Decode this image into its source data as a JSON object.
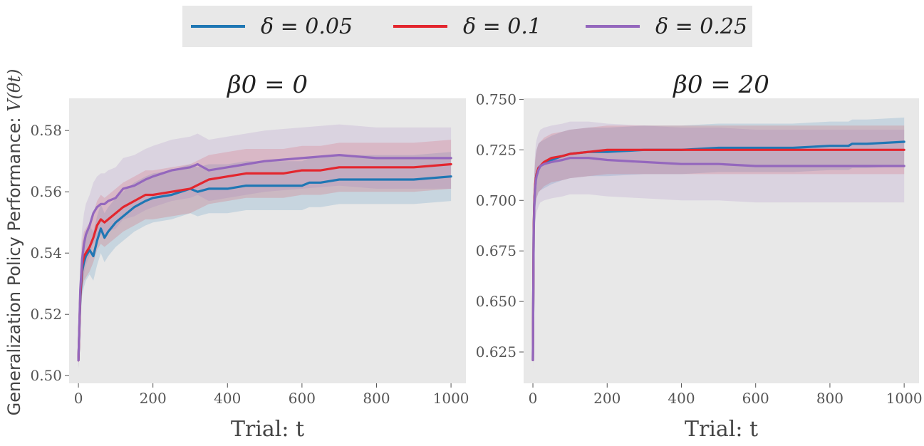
{
  "figure": {
    "ylabel_text": "Generalization Policy Performance:",
    "ylabel_math": "V(θt)",
    "legend": [
      {
        "label": "δ = 0.05",
        "color": "#1f77b4"
      },
      {
        "label": "δ = 0.1",
        "color": "#e3262e"
      },
      {
        "label": "δ = 0.25",
        "color": "#9467bd"
      }
    ]
  },
  "chart_data": [
    {
      "type": "line",
      "title": "β0 = 0",
      "xlabel": "Trial: t",
      "ylabel": "Generalization Policy Performance: V(θt)",
      "xlim": [
        -25,
        1040
      ],
      "ylim": [
        0.4975,
        0.5905
      ],
      "xticks": [
        0,
        200,
        400,
        600,
        800,
        1000
      ],
      "xtick_labels": [
        "0",
        "200",
        "400",
        "600",
        "800",
        "1000"
      ],
      "yticks": [
        0.5,
        0.52,
        0.54,
        0.56,
        0.58
      ],
      "ytick_labels": [
        "0.50",
        "0.52",
        "0.54",
        "0.56",
        "0.58"
      ],
      "grid": false,
      "series": [
        {
          "name": "δ = 0.05",
          "color": "#1f77b4",
          "band": 0.008,
          "x": [
            0,
            5,
            10,
            15,
            20,
            30,
            40,
            50,
            60,
            70,
            80,
            100,
            120,
            150,
            180,
            200,
            250,
            300,
            320,
            350,
            400,
            450,
            500,
            550,
            600,
            620,
            650,
            700,
            800,
            900,
            1000
          ],
          "y": [
            0.505,
            0.525,
            0.534,
            0.537,
            0.539,
            0.541,
            0.539,
            0.544,
            0.548,
            0.545,
            0.547,
            0.55,
            0.552,
            0.555,
            0.557,
            0.558,
            0.559,
            0.561,
            0.56,
            0.561,
            0.561,
            0.562,
            0.562,
            0.562,
            0.562,
            0.563,
            0.563,
            0.564,
            0.564,
            0.564,
            0.565
          ]
        },
        {
          "name": "δ = 0.1",
          "color": "#e3262e",
          "band": 0.008,
          "x": [
            0,
            5,
            10,
            15,
            20,
            30,
            40,
            50,
            60,
            70,
            80,
            100,
            120,
            150,
            180,
            200,
            250,
            300,
            350,
            400,
            450,
            500,
            550,
            600,
            650,
            700,
            800,
            900,
            1000
          ],
          "y": [
            0.505,
            0.526,
            0.536,
            0.539,
            0.54,
            0.542,
            0.545,
            0.549,
            0.551,
            0.55,
            0.551,
            0.553,
            0.555,
            0.557,
            0.559,
            0.559,
            0.56,
            0.561,
            0.564,
            0.565,
            0.566,
            0.566,
            0.566,
            0.567,
            0.567,
            0.568,
            0.568,
            0.568,
            0.569
          ]
        },
        {
          "name": "δ = 0.25",
          "color": "#9467bd",
          "band": 0.01,
          "x": [
            0,
            5,
            10,
            15,
            20,
            30,
            40,
            50,
            60,
            70,
            80,
            100,
            120,
            150,
            180,
            200,
            250,
            300,
            320,
            350,
            400,
            450,
            500,
            600,
            700,
            800,
            900,
            1000
          ],
          "y": [
            0.505,
            0.528,
            0.538,
            0.543,
            0.546,
            0.549,
            0.553,
            0.555,
            0.556,
            0.556,
            0.557,
            0.558,
            0.561,
            0.562,
            0.564,
            0.565,
            0.567,
            0.568,
            0.569,
            0.567,
            0.568,
            0.569,
            0.57,
            0.571,
            0.572,
            0.571,
            0.571,
            0.571
          ]
        }
      ]
    },
    {
      "type": "line",
      "title": "β0 = 20",
      "xlabel": "Trial: t",
      "ylabel": "",
      "xlim": [
        -25,
        1040
      ],
      "ylim": [
        0.6095,
        0.7505
      ],
      "xticks": [
        0,
        200,
        400,
        600,
        800,
        1000
      ],
      "xtick_labels": [
        "0",
        "200",
        "400",
        "600",
        "800",
        "1000"
      ],
      "yticks": [
        0.625,
        0.65,
        0.675,
        0.7,
        0.725,
        0.75
      ],
      "ytick_labels": [
        "0.625",
        "0.650",
        "0.675",
        "0.700",
        "0.725",
        "0.750"
      ],
      "grid": false,
      "series": [
        {
          "name": "δ = 0.05",
          "color": "#1f77b4",
          "band": 0.012,
          "x": [
            0,
            2,
            4,
            6,
            8,
            10,
            15,
            20,
            30,
            50,
            80,
            100,
            150,
            200,
            300,
            400,
            500,
            600,
            700,
            800,
            850,
            860,
            900,
            1000
          ],
          "y": [
            0.621,
            0.685,
            0.7,
            0.707,
            0.711,
            0.713,
            0.716,
            0.717,
            0.718,
            0.72,
            0.722,
            0.723,
            0.724,
            0.724,
            0.725,
            0.725,
            0.726,
            0.726,
            0.726,
            0.727,
            0.727,
            0.728,
            0.728,
            0.729
          ]
        },
        {
          "name": "δ = 0.1",
          "color": "#e3262e",
          "band": 0.012,
          "x": [
            0,
            2,
            4,
            6,
            8,
            10,
            15,
            20,
            30,
            50,
            80,
            100,
            150,
            200,
            300,
            400,
            500,
            600,
            700,
            800,
            900,
            1000
          ],
          "y": [
            0.621,
            0.686,
            0.701,
            0.708,
            0.711,
            0.713,
            0.716,
            0.717,
            0.719,
            0.721,
            0.722,
            0.723,
            0.724,
            0.725,
            0.725,
            0.725,
            0.725,
            0.725,
            0.725,
            0.725,
            0.725,
            0.725
          ]
        },
        {
          "name": "δ = 0.25",
          "color": "#9467bd",
          "band": 0.018,
          "x": [
            0,
            2,
            4,
            6,
            8,
            10,
            15,
            20,
            30,
            50,
            80,
            100,
            150,
            200,
            300,
            400,
            500,
            600,
            700,
            800,
            900,
            1000
          ],
          "y": [
            0.621,
            0.684,
            0.699,
            0.706,
            0.71,
            0.712,
            0.715,
            0.717,
            0.718,
            0.719,
            0.72,
            0.721,
            0.721,
            0.72,
            0.719,
            0.718,
            0.718,
            0.717,
            0.717,
            0.717,
            0.717,
            0.717
          ]
        }
      ]
    }
  ]
}
